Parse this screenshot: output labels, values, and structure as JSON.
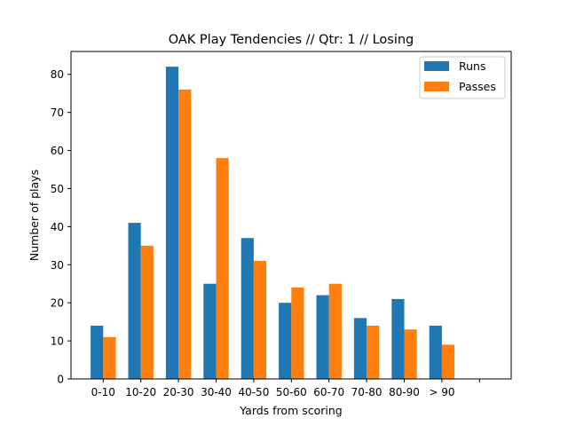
{
  "chart_data": {
    "type": "bar",
    "title": "OAK Play Tendencies // Qtr: 1 // Losing",
    "xlabel": "Yards from scoring",
    "ylabel": "Number of plays",
    "categories": [
      "0-10",
      "10-20",
      "20-30",
      "30-40",
      "40-50",
      "50-60",
      "60-70",
      "70-80",
      "80-90",
      "> 90",
      ""
    ],
    "series": [
      {
        "name": "Runs",
        "color": "#1f77b4",
        "values": [
          14,
          41,
          82,
          25,
          37,
          20,
          22,
          16,
          21,
          14,
          0
        ]
      },
      {
        "name": "Passes",
        "color": "#ff7f0e",
        "values": [
          11,
          35,
          76,
          58,
          31,
          24,
          25,
          14,
          13,
          9,
          0
        ]
      }
    ],
    "ylim": [
      0,
      86
    ],
    "yticks": [
      0,
      10,
      20,
      30,
      40,
      50,
      60,
      70,
      80
    ],
    "grid": false,
    "legend_position": "top-right"
  }
}
